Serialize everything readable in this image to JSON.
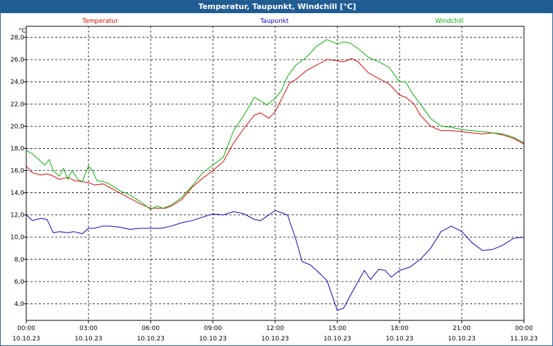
{
  "window": {
    "title": "Temperatur, Taupunkt, Windchill [°C]"
  },
  "chart_data": {
    "type": "line",
    "title": "Temperatur, Taupunkt, Windchill [°C]",
    "ylabel": "°C",
    "ylim": [
      2.5,
      29.0
    ],
    "xlim": [
      0,
      24
    ],
    "grid": true,
    "y_ticks": [
      "4,0",
      "6,0",
      "8,0",
      "10,0",
      "12,0",
      "14,0",
      "16,0",
      "18,0",
      "20,0",
      "22,0",
      "24,0",
      "26,0",
      "28,0"
    ],
    "y_tick_values": [
      4,
      6,
      8,
      10,
      12,
      14,
      16,
      18,
      20,
      22,
      24,
      26,
      28
    ],
    "x_ticks": [
      {
        "time": "00:00",
        "date": "10.10.23",
        "hour": 0
      },
      {
        "time": "03:00",
        "date": "10.10.23",
        "hour": 3
      },
      {
        "time": "06:00",
        "date": "10.10.23",
        "hour": 6
      },
      {
        "time": "09:00",
        "date": "10.10.23",
        "hour": 9
      },
      {
        "time": "12:00",
        "date": "10.10.23",
        "hour": 12
      },
      {
        "time": "15:00",
        "date": "10.10.23",
        "hour": 15
      },
      {
        "time": "18:00",
        "date": "10.10.23",
        "hour": 18
      },
      {
        "time": "21:00",
        "date": "10.10.23",
        "hour": 21
      },
      {
        "time": "00:00",
        "date": "11.10.23",
        "hour": 24
      }
    ],
    "legend_placement": "top",
    "series": [
      {
        "name": "Temperatur",
        "color": "#e00000",
        "x": [
          0,
          0.3,
          0.7,
          1.0,
          1.3,
          1.6,
          2.0,
          2.3,
          2.7,
          3.0,
          3.3,
          3.7,
          4.0,
          4.5,
          5.0,
          5.5,
          6.0,
          6.3,
          6.7,
          7.0,
          7.5,
          8.0,
          8.5,
          9.0,
          9.5,
          10.0,
          10.5,
          11.0,
          11.3,
          11.7,
          12.0,
          12.3,
          12.7,
          13.0,
          13.5,
          14.0,
          14.5,
          15.0,
          15.3,
          15.7,
          16.0,
          16.5,
          17.0,
          17.5,
          18.0,
          18.3,
          18.7,
          19.0,
          19.5,
          20.0,
          20.5,
          21.0,
          21.5,
          22.0,
          22.5,
          23.0,
          23.5,
          24.0
        ],
        "values": [
          16.4,
          15.8,
          15.6,
          15.7,
          15.5,
          15.2,
          15.4,
          15.1,
          15.0,
          14.9,
          14.7,
          14.8,
          14.5,
          14.0,
          13.5,
          13.0,
          12.6,
          12.6,
          12.6,
          12.8,
          13.4,
          14.5,
          15.3,
          16.0,
          16.8,
          18.5,
          19.8,
          21.0,
          21.2,
          20.7,
          21.3,
          22.4,
          23.9,
          24.2,
          25.0,
          25.5,
          26.0,
          25.9,
          25.8,
          26.1,
          25.8,
          24.8,
          24.3,
          23.8,
          22.8,
          22.6,
          22.0,
          21.0,
          20.0,
          19.6,
          19.6,
          19.5,
          19.4,
          19.3,
          19.4,
          19.2,
          18.9,
          18.4
        ]
      },
      {
        "name": "Taupunkt",
        "color": "#0000c0",
        "x": [
          0,
          0.3,
          0.7,
          1.0,
          1.3,
          1.6,
          2.0,
          2.3,
          2.7,
          3.0,
          3.3,
          3.7,
          4.0,
          4.5,
          5.0,
          5.5,
          6.0,
          6.5,
          7.0,
          7.5,
          8.0,
          8.5,
          9.0,
          9.5,
          10.0,
          10.5,
          11.0,
          11.3,
          11.7,
          12.0,
          12.3,
          12.6,
          13.0,
          13.3,
          13.7,
          14.0,
          14.5,
          15.0,
          15.3,
          15.7,
          16.0,
          16.3,
          16.6,
          17.0,
          17.3,
          17.6,
          18.0,
          18.5,
          19.0,
          19.5,
          20.0,
          20.5,
          21.0,
          21.5,
          22.0,
          22.5,
          23.0,
          23.5,
          24.0
        ],
        "values": [
          12.0,
          11.5,
          11.7,
          11.6,
          10.4,
          10.5,
          10.4,
          10.5,
          10.3,
          10.8,
          10.8,
          11.0,
          11.0,
          10.9,
          10.7,
          10.8,
          10.8,
          10.8,
          11.0,
          11.3,
          11.5,
          11.8,
          12.1,
          12.0,
          12.3,
          12.1,
          11.6,
          11.5,
          12.0,
          12.4,
          12.2,
          12.0,
          9.8,
          7.8,
          7.5,
          7.0,
          6.1,
          3.4,
          3.6,
          5.0,
          6.0,
          7.0,
          6.2,
          7.1,
          7.0,
          6.4,
          7.0,
          7.3,
          8.0,
          9.0,
          10.5,
          11.0,
          10.5,
          9.5,
          8.8,
          8.9,
          9.3,
          9.9,
          10.0
        ]
      },
      {
        "name": "Windchill",
        "color": "#00b000",
        "x": [
          0,
          0.3,
          0.6,
          0.9,
          1.1,
          1.3,
          1.6,
          1.8,
          2.0,
          2.2,
          2.5,
          2.7,
          3.0,
          3.2,
          3.4,
          3.7,
          4.0,
          4.5,
          5.0,
          5.5,
          6.0,
          6.3,
          6.6,
          7.0,
          7.5,
          8.0,
          8.5,
          9.0,
          9.5,
          10.0,
          10.5,
          11.0,
          11.3,
          11.6,
          12.0,
          12.3,
          12.6,
          13.0,
          13.5,
          14.0,
          14.5,
          15.0,
          15.3,
          15.6,
          16.0,
          16.5,
          17.0,
          17.5,
          18.0,
          18.3,
          18.6,
          19.0,
          19.5,
          20.0,
          20.5,
          21.0,
          21.5,
          22.0,
          22.5,
          23.0,
          23.5,
          24.0
        ],
        "values": [
          17.8,
          17.5,
          17.0,
          16.5,
          17.0,
          16.0,
          15.5,
          16.2,
          15.2,
          16.0,
          15.2,
          15.0,
          16.4,
          16.0,
          15.1,
          15.0,
          14.8,
          14.2,
          13.8,
          13.2,
          12.5,
          12.8,
          12.6,
          12.9,
          13.6,
          14.6,
          15.8,
          16.5,
          17.2,
          19.6,
          21.0,
          22.6,
          22.3,
          21.9,
          22.5,
          23.2,
          24.5,
          25.5,
          26.2,
          27.2,
          27.8,
          27.4,
          27.6,
          27.5,
          27.0,
          26.2,
          25.8,
          25.3,
          24.0,
          24.0,
          23.0,
          22.0,
          20.7,
          20.0,
          19.9,
          19.7,
          19.6,
          19.5,
          19.4,
          19.3,
          19.0,
          18.5
        ]
      }
    ]
  }
}
